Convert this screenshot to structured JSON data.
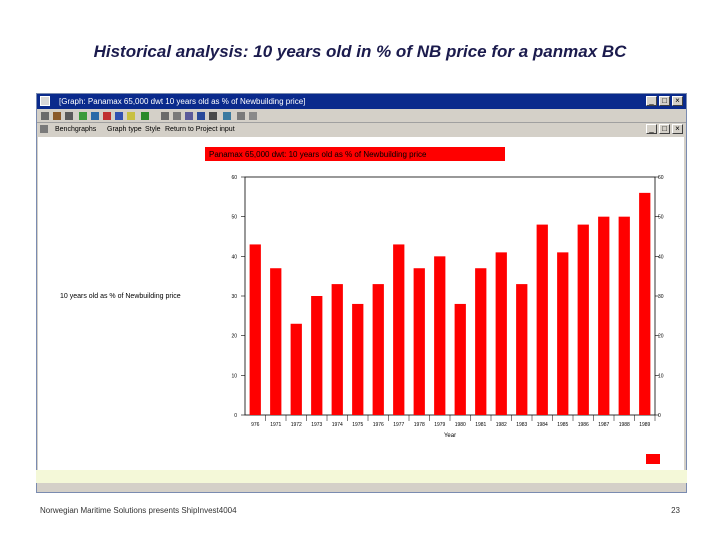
{
  "slide": {
    "title": "Historical analysis: 10 years old in % of NB price for a panmax BC",
    "footer_left": "Norwegian Maritime Solutions presents ShipInvest4004",
    "page_number": "23"
  },
  "window": {
    "title": "[Graph: Panamax 65,000 dwt 10 years old as % of Newbuilding price]",
    "menu": [
      "Benchgraphs",
      "Graph type",
      "Style",
      "Return to Project input"
    ],
    "controls": [
      "_",
      "□",
      "×"
    ]
  },
  "colors": {
    "bar": "#ff0000",
    "title_box": "#ff0000",
    "window_title": "#0a2a8c"
  },
  "chart_data": {
    "type": "bar",
    "title": "Panamax 65,000 dwt: 10 years old as % of Newbuilding price",
    "xlabel": "Year",
    "ylabel": "10 years old as % of Newbuilding price",
    "ylim": [
      0,
      60
    ],
    "yticks": [
      0,
      10,
      20,
      30,
      40,
      50,
      60
    ],
    "yticks_right": [
      0,
      10,
      20,
      30,
      40,
      50,
      60
    ],
    "grid": false,
    "categories": [
      "976",
      "1971",
      "1972",
      "1973",
      "1974",
      "1975",
      "1976",
      "1977",
      "1978",
      "1979",
      "1980",
      "1981",
      "1982",
      "1983",
      "1984",
      "1985",
      "1986",
      "1987",
      "1988",
      "1989"
    ],
    "values": [
      43,
      37,
      23,
      30,
      33,
      28,
      33,
      43,
      37,
      40,
      28,
      37,
      41,
      33,
      48,
      41,
      48,
      50,
      50,
      56
    ]
  }
}
